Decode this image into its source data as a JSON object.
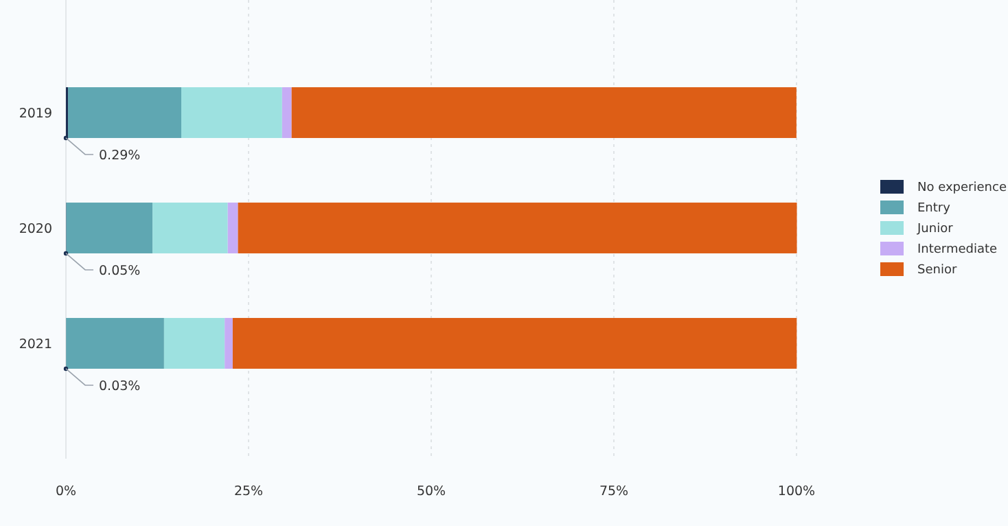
{
  "chart_data": {
    "type": "bar",
    "orientation": "horizontal",
    "stacked": true,
    "categories": [
      "2019",
      "2020",
      "2021"
    ],
    "series": [
      {
        "name": "No experience",
        "color": "#1b2f52",
        "values": [
          0.29,
          0.05,
          0.03
        ],
        "value_labels": [
          "0.29%",
          "0.05%",
          "0.03%"
        ]
      },
      {
        "name": "Entry",
        "color": "#5fa7b2",
        "values": [
          15.5,
          11.8,
          13.4
        ]
      },
      {
        "name": "Junior",
        "color": "#9de1e0",
        "values": [
          13.8,
          10.3,
          8.3
        ]
      },
      {
        "name": "Intermediate",
        "color": "#c6acf5",
        "values": [
          1.3,
          1.4,
          1.1
        ]
      },
      {
        "name": "Senior",
        "color": "#dd5e16",
        "values": [
          69.1,
          76.5,
          77.2
        ]
      }
    ],
    "xlim": [
      0,
      100
    ],
    "xticks": [
      {
        "value": 0,
        "label": "0%"
      },
      {
        "value": 25,
        "label": "25%"
      },
      {
        "value": 50,
        "label": "50%"
      },
      {
        "value": 75,
        "label": "75%"
      },
      {
        "value": 100,
        "label": "100%"
      }
    ],
    "grid": "x",
    "legend": "right"
  }
}
